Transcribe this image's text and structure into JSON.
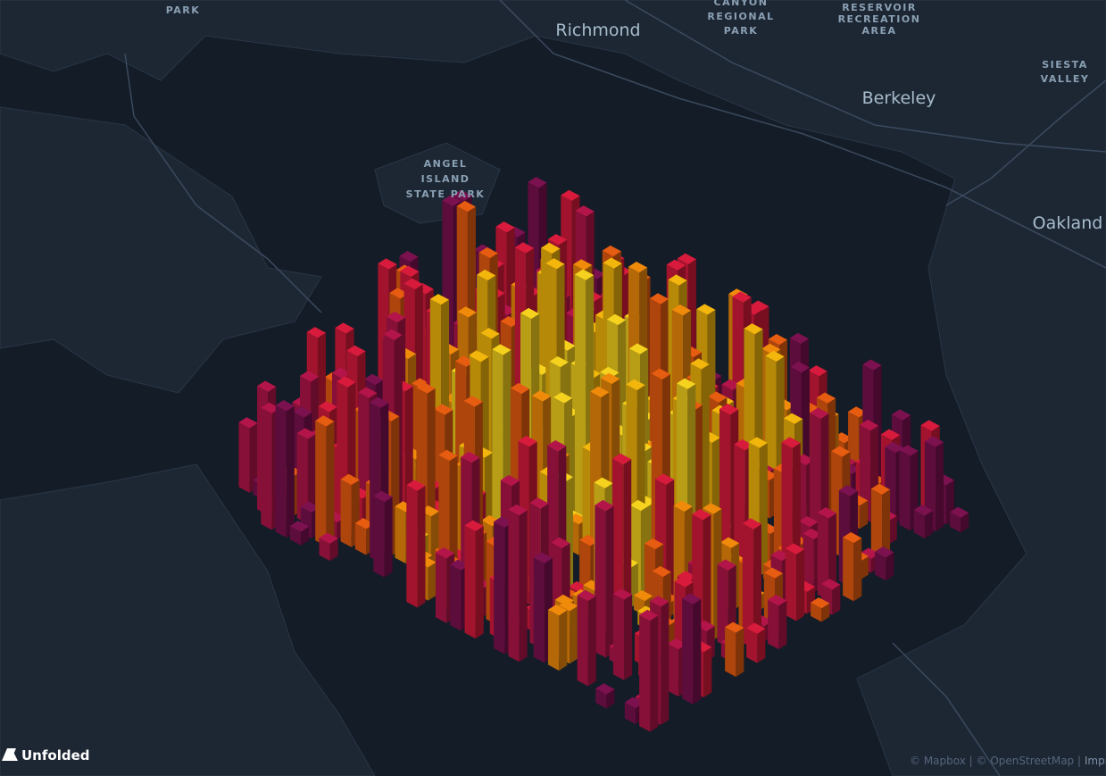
{
  "labels": {
    "park_top": {
      "lines": [
        "PARK"
      ]
    },
    "canyon": {
      "lines": [
        "CANYON",
        "REGIONAL",
        "PARK"
      ]
    },
    "reservoir": {
      "lines": [
        "RESERVOIR",
        "RECREATION",
        "AREA"
      ]
    },
    "richmond": {
      "lines": [
        "Richmond"
      ]
    },
    "siesta": {
      "lines": [
        "SIESTA",
        "VALLEY"
      ]
    },
    "berkeley": {
      "lines": [
        "Berkeley"
      ]
    },
    "angel": {
      "lines": [
        "ANGEL",
        "ISLAND",
        "STATE PARK"
      ]
    },
    "oakland": {
      "lines": [
        "Oakland"
      ]
    }
  },
  "logo": "Unfolded",
  "attribution": {
    "mapbox": "© Mapbox",
    "osm": "© OpenStreetMap",
    "improve": "Improve"
  }
}
